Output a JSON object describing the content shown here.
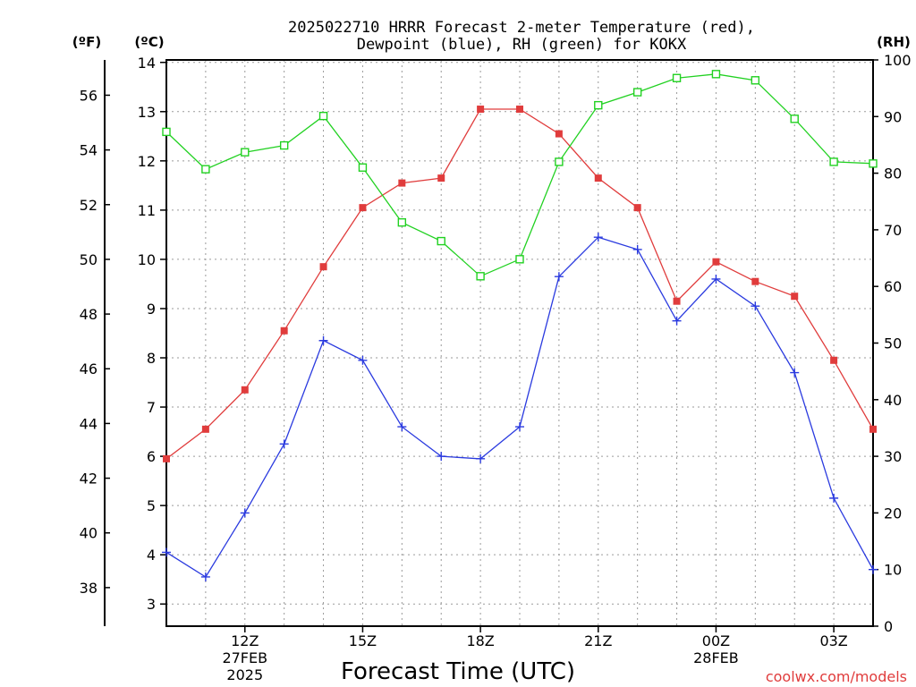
{
  "chart_data": {
    "type": "line",
    "title_line1": "2025022710 HRRR Forecast 2-meter Temperature (red),",
    "title_line2": "Dewpoint (blue), RH (green) for KOKX",
    "unit_f": "(ºF)",
    "unit_c": "(ºC)",
    "unit_rh": "(RH)",
    "xlabel": "Forecast Time (UTC)",
    "credit": "coolwx.com/models",
    "x_hours": [
      10,
      11,
      12,
      13,
      14,
      15,
      16,
      17,
      18,
      19,
      20,
      21,
      22,
      23,
      24,
      25,
      26,
      27,
      28
    ],
    "x_ticks": [
      {
        "hour": 12,
        "lines": [
          "12Z",
          "27FEB",
          "2025"
        ]
      },
      {
        "hour": 15,
        "lines": [
          "15Z"
        ]
      },
      {
        "hour": 18,
        "lines": [
          "18Z"
        ]
      },
      {
        "hour": 21,
        "lines": [
          "21Z"
        ]
      },
      {
        "hour": 24,
        "lines": [
          "00Z",
          "28FEB"
        ]
      },
      {
        "hour": 27,
        "lines": [
          "03Z"
        ]
      }
    ],
    "xlim": [
      10,
      28
    ],
    "ylim_c": [
      2.55,
      14.05
    ],
    "ylim_rh": [
      0,
      100
    ],
    "y_ticks_c": [
      3,
      4,
      5,
      6,
      7,
      8,
      9,
      10,
      11,
      12,
      13,
      14
    ],
    "y_ticks_f": [
      38,
      40,
      42,
      44,
      46,
      48,
      50,
      52,
      54,
      56
    ],
    "y_ticks_rh": [
      0,
      10,
      20,
      30,
      40,
      50,
      60,
      70,
      80,
      90,
      100
    ],
    "grid": true,
    "series": [
      {
        "name": "Temperature",
        "axis": "c",
        "color": "#e03c3c",
        "marker": "filled-square",
        "values": [
          5.95,
          6.55,
          7.35,
          8.55,
          9.85,
          11.05,
          11.55,
          11.65,
          13.05,
          13.05,
          12.55,
          11.65,
          11.05,
          9.15,
          9.95,
          9.55,
          9.25,
          7.95,
          6.55
        ]
      },
      {
        "name": "Dewpoint",
        "axis": "c",
        "color": "#2a3adf",
        "marker": "plus",
        "values": [
          4.05,
          3.55,
          4.85,
          6.25,
          8.35,
          7.95,
          6.6,
          6.0,
          5.95,
          6.6,
          9.65,
          10.45,
          10.2,
          8.75,
          9.6,
          9.05,
          7.7,
          5.15,
          3.7
        ]
      },
      {
        "name": "RH",
        "axis": "rh",
        "color": "#21d121",
        "marker": "open-square",
        "values": [
          87.3,
          80.7,
          83.7,
          84.9,
          90.1,
          81.0,
          71.3,
          68.0,
          61.8,
          64.8,
          82.0,
          92.0,
          94.3,
          96.8,
          97.5,
          96.4,
          89.6,
          82.0,
          81.7
        ]
      }
    ]
  }
}
